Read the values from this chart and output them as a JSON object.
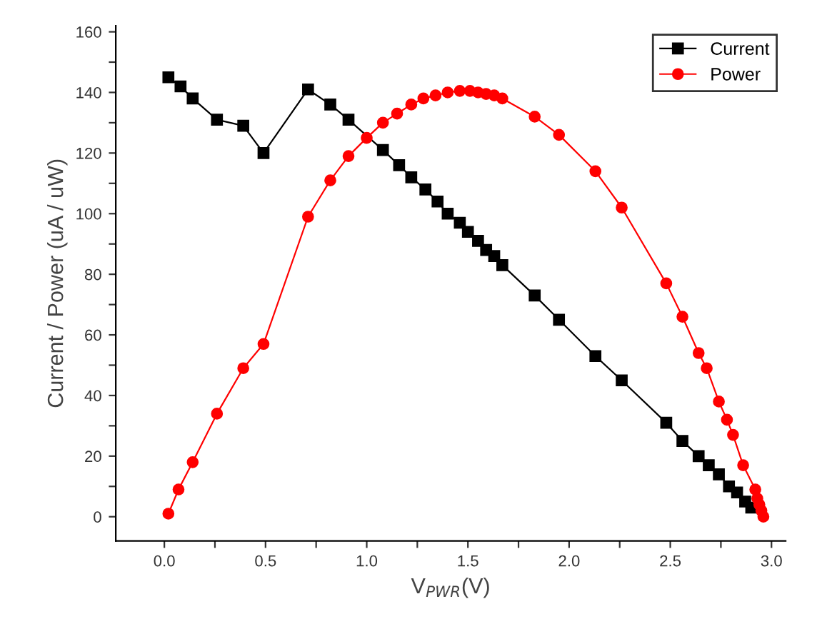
{
  "chart_data": {
    "type": "line",
    "xlabel": "V$_{PWR}$(V)",
    "ylabel": "Current / Power (uA / uW)",
    "xlim": [
      -0.24,
      3.07
    ],
    "ylim": [
      -8,
      162
    ],
    "xticks": [
      {
        "value": 0,
        "label": "0.0"
      },
      {
        "value": 0.25,
        "label": null
      },
      0.5,
      {
        "value": 0.75,
        "label": null
      },
      {
        "value": 1,
        "label": "1.0"
      },
      {
        "value": 1.25,
        "label": null
      },
      1.5,
      {
        "value": 1.75,
        "label": null
      },
      {
        "value": 2,
        "label": "2.0"
      },
      {
        "value": 2.25,
        "label": null
      },
      2.5,
      {
        "value": 2.75,
        "label": null
      },
      {
        "value": 3,
        "label": "3.0"
      }
    ],
    "yticks": [
      0,
      {
        "value": 10,
        "label": null
      },
      20,
      {
        "value": 30,
        "label": null
      },
      40,
      {
        "value": 50,
        "label": null
      },
      60,
      {
        "value": 70,
        "label": null
      },
      80,
      {
        "value": 90,
        "label": null
      },
      100,
      {
        "value": 110,
        "label": null
      },
      120,
      {
        "value": 130,
        "label": null
      },
      140,
      {
        "value": 150,
        "label": null
      },
      160
    ],
    "legend": "top right",
    "grid": false,
    "series": [
      {
        "name": "Current",
        "color": "#000000",
        "marker": "square",
        "x": [
          0.02,
          0.08,
          0.14,
          0.26,
          0.39,
          0.49,
          0.71,
          0.82,
          0.91,
          1.08,
          1.16,
          1.22,
          1.29,
          1.35,
          1.4,
          1.46,
          1.5,
          1.55,
          1.59,
          1.63,
          1.67,
          1.83,
          1.95,
          2.13,
          2.26,
          2.48,
          2.56,
          2.64,
          2.69,
          2.74,
          2.79,
          2.83,
          2.87,
          2.9
        ],
        "values": [
          145,
          142,
          138,
          131,
          129,
          120,
          141,
          136,
          131,
          121,
          116,
          112,
          108,
          104,
          100,
          97,
          94,
          91,
          88,
          86,
          83,
          73,
          65,
          53,
          45,
          31,
          25,
          20,
          17,
          14,
          10,
          8,
          5,
          3
        ]
      },
      {
        "name": "Power",
        "color": "#ff0000",
        "marker": "circle",
        "x": [
          0.02,
          0.07,
          0.14,
          0.26,
          0.39,
          0.49,
          0.71,
          0.82,
          0.91,
          1.0,
          1.08,
          1.15,
          1.22,
          1.28,
          1.34,
          1.4,
          1.46,
          1.51,
          1.55,
          1.59,
          1.63,
          1.67,
          1.83,
          1.95,
          2.13,
          2.26,
          2.48,
          2.56,
          2.64,
          2.68,
          2.74,
          2.78,
          2.81,
          2.86,
          2.92,
          2.93,
          2.94,
          2.95,
          2.96
        ],
        "values": [
          1,
          9,
          18,
          34,
          49,
          57,
          99,
          111,
          119,
          125,
          130,
          133,
          136,
          138,
          139,
          140,
          140.5,
          140.5,
          140,
          139.5,
          139,
          138,
          132,
          126,
          114,
          102,
          77,
          66,
          54,
          49,
          38,
          32,
          27,
          17,
          9,
          6,
          4,
          2,
          0
        ]
      }
    ]
  }
}
